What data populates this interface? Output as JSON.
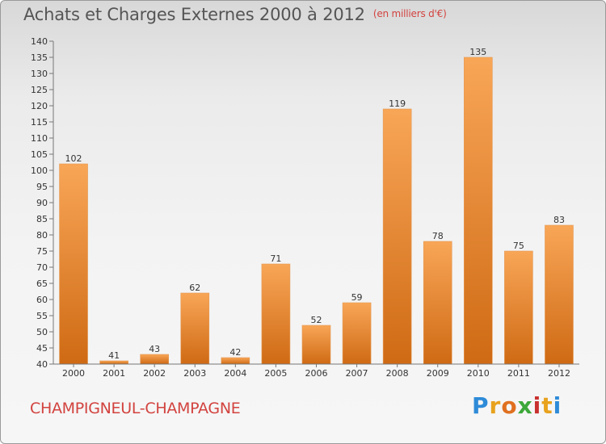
{
  "title": "Achats et Charges Externes 2000 à 2012",
  "unit": "(en milliers d'€)",
  "place": "CHAMPIGNEUL-CHAMPAGNE",
  "logo": {
    "letters": [
      "P",
      "r",
      "o",
      "x",
      "i",
      "t",
      "i"
    ],
    "colors": [
      "#2e8bd8",
      "#e8a21e",
      "#e07020",
      "#3da83a",
      "#c8312f",
      "#e8a21e",
      "#2e8bd8"
    ]
  },
  "colors": {
    "bar_top": "#f8a657",
    "bar_bottom": "#cf6a14",
    "title": "#555555",
    "place": "#d2433f"
  },
  "chart_data": {
    "type": "bar",
    "title": "Achats et Charges Externes 2000 à 2012",
    "subtitle": "(en milliers d'€)",
    "categories": [
      "2000",
      "2001",
      "2002",
      "2003",
      "2004",
      "2005",
      "2006",
      "2007",
      "2008",
      "2009",
      "2010",
      "2011",
      "2012"
    ],
    "values": [
      102,
      41,
      43,
      62,
      42,
      71,
      52,
      59,
      119,
      78,
      135,
      75,
      83
    ],
    "ylim": [
      40,
      140
    ],
    "yticks": [
      40,
      45,
      50,
      55,
      60,
      65,
      70,
      75,
      80,
      85,
      90,
      95,
      100,
      105,
      110,
      115,
      120,
      125,
      130,
      135,
      140
    ],
    "grid": false,
    "data_labels": true
  }
}
